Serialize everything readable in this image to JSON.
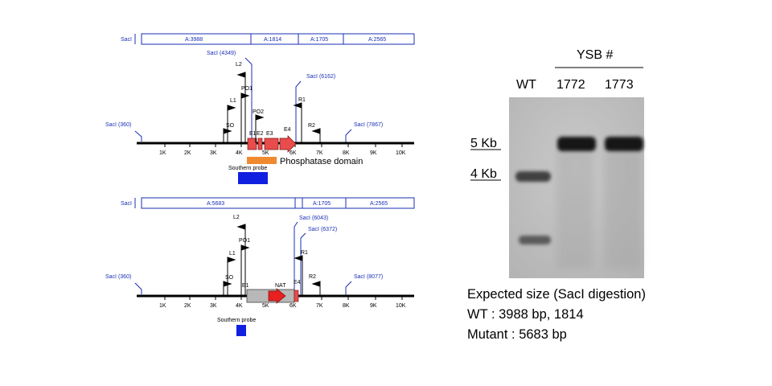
{
  "map_wt": {
    "header_left": "SacI",
    "header_segments": [
      "A:3988",
      "A:1814",
      "A:1705",
      "A:2565"
    ],
    "sites": [
      "SacI (360)",
      "SacI (4349)",
      "SacI (6162)",
      "SacI (7867)"
    ],
    "ticks": [
      "1K",
      "2K",
      "3K",
      "4K",
      "5K",
      "6K",
      "7K",
      "8K",
      "9K",
      "10K"
    ],
    "primers": [
      "SO",
      "L1",
      "L2",
      "PO1",
      "PO2",
      "R1",
      "R2"
    ],
    "exons": [
      "E1",
      "E2",
      "E3",
      "E4"
    ],
    "domain_label": "Phosphatase domain",
    "probe_label": "Southern probe",
    "colors": {
      "exon": "#e84c4c",
      "domain": "#f08a30",
      "probe": "#1020e0",
      "line": "#1a2fb5"
    }
  },
  "map_mut": {
    "header_left": "SacI",
    "header_segments": [
      "A:5683",
      "A:1705",
      "A:2565"
    ],
    "sites": [
      "SacI (360)",
      "SacI (6043)",
      "SacI (6372)",
      "SacI (8077)"
    ],
    "ticks": [
      "1K",
      "2K",
      "3K",
      "4K",
      "5K",
      "6K",
      "7K",
      "8K",
      "9K",
      "10K"
    ],
    "primers": [
      "SO",
      "L1",
      "L2",
      "PO1",
      "R1",
      "R2"
    ],
    "exons": [
      "E1",
      "E4"
    ],
    "marker_label": "NAT",
    "probe_label": "Southern probe",
    "colors": {
      "cassette": "#b8b8b8",
      "marker": "#e82020",
      "probe": "#1020e0"
    }
  },
  "blot": {
    "group_label": "YSB #",
    "lanes": [
      "WT",
      "1772",
      "1773"
    ],
    "size_markers": [
      "5 Kb",
      "4 Kb"
    ]
  },
  "expected": {
    "title": "Expected size (SacI digestion)",
    "wt": "WT : 3988 bp, 1814",
    "mutant": "Mutant : 5683 bp"
  }
}
